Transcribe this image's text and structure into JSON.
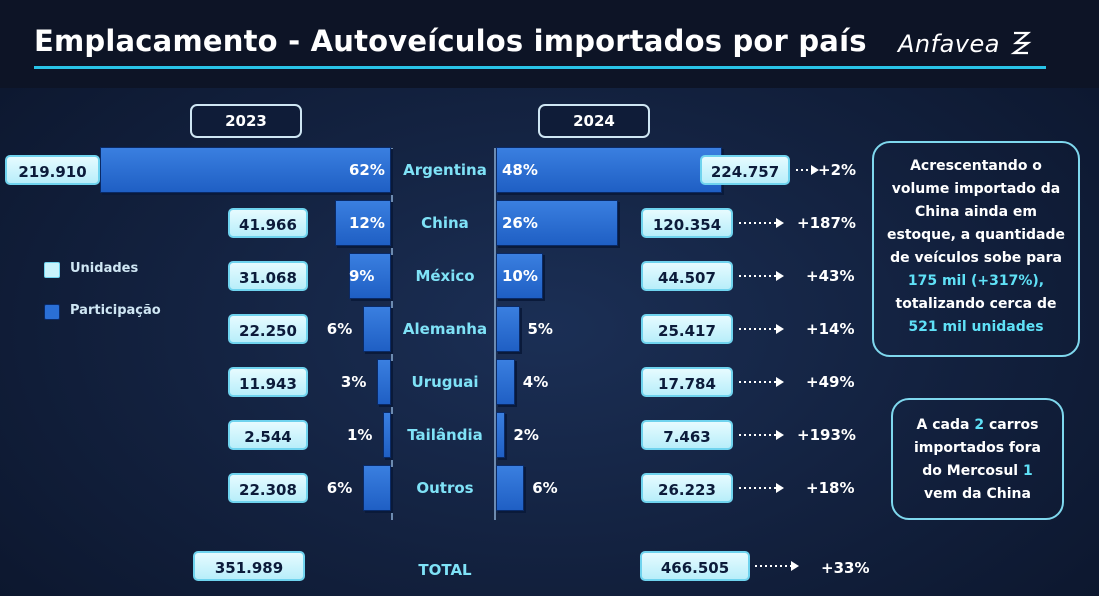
{
  "title": "Emplacamento - Autoveículos importados por país",
  "logo": "Anfavea",
  "years": [
    "2023",
    "2024"
  ],
  "legend": {
    "units": "Unidades",
    "share": "Participação"
  },
  "chart_data": {
    "type": "bar",
    "categories": [
      "Argentina",
      "China",
      "México",
      "Alemanha",
      "Uruguai",
      "Tailândia",
      "Outros"
    ],
    "series": [
      {
        "name": "2023",
        "units": [
          "219.910",
          "41.966",
          "31.068",
          "22.250",
          "11.943",
          "2.544",
          "22.308"
        ],
        "share_labels": [
          "62%",
          "12%",
          "9%",
          "6%",
          "3%",
          "1%",
          "6%"
        ],
        "share": [
          62,
          12,
          9,
          6,
          3,
          1,
          6
        ]
      },
      {
        "name": "2024",
        "units": [
          "224.757",
          "120.354",
          "44.507",
          "25.417",
          "17.784",
          "7.463",
          "26.223"
        ],
        "share_labels": [
          "48%",
          "26%",
          "10%",
          "5%",
          "4%",
          "2%",
          "6%"
        ],
        "share": [
          48,
          26,
          10,
          5,
          4,
          2,
          6
        ]
      }
    ],
    "change": [
      "+2%",
      "+187%",
      "+43%",
      "+14%",
      "+49%",
      "+193%",
      "+18%"
    ],
    "total": {
      "label": "TOTAL",
      "y2023": "351.989",
      "y2024": "466.505",
      "change": "+33%"
    }
  },
  "notes": {
    "china_stock": {
      "l1": "Acrescentando o",
      "l2": "volume importado da",
      "l3": "China ainda em",
      "l4": "estoque, a quantidade",
      "l5": "de veículos sobe para",
      "l6": "175 mil (+317%),",
      "l7": "totalizando cerca de",
      "l8": "521 mil unidades"
    },
    "mercosul": {
      "l1a": "A cada ",
      "l1b": "2",
      "l1c": " carros",
      "l2": "importados fora",
      "l3a": "do Mercosul ",
      "l3b": "1",
      "l4": "vem da China"
    }
  },
  "colors": {
    "accent": "#29c4e8",
    "bar": "#2a6fd6",
    "country": "#7fe2f7",
    "box": "#c8f3fc"
  }
}
